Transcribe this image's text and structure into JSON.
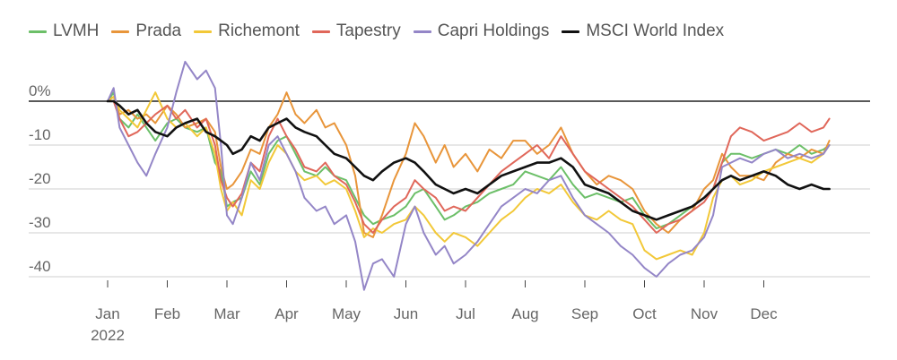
{
  "chart_data": {
    "type": "line",
    "title": "",
    "xlabel": "",
    "ylabel": "",
    "ylim": [
      -44,
      2
    ],
    "y_ticks": [
      0,
      -10,
      -20,
      -30,
      -40
    ],
    "y_tick_labels": [
      "0%",
      "-10",
      "-20",
      "-30",
      "-40"
    ],
    "x_ticks": [
      "Jan",
      "Feb",
      "Mar",
      "Apr",
      "May",
      "Jun",
      "Jul",
      "Aug",
      "Sep",
      "Oct",
      "Nov",
      "Dec"
    ],
    "x_tick_year": "2022",
    "x_tick_positions_month": [
      0,
      1,
      2,
      3,
      4,
      5,
      6,
      7,
      8,
      9,
      10,
      11
    ],
    "xlim_month": [
      0,
      12.2
    ],
    "legend_position": "top",
    "grid": "horizontal",
    "series": [
      {
        "name": "LVMH",
        "color": "#6cbf68",
        "x": [
          0,
          0.1,
          0.2,
          0.35,
          0.5,
          0.65,
          0.8,
          1.0,
          1.15,
          1.3,
          1.5,
          1.65,
          1.8,
          1.9,
          2.0,
          2.1,
          2.25,
          2.4,
          2.55,
          2.7,
          2.85,
          3.0,
          3.15,
          3.3,
          3.5,
          3.65,
          3.8,
          4.0,
          4.15,
          4.3,
          4.45,
          4.6,
          4.8,
          5.0,
          5.15,
          5.3,
          5.5,
          5.65,
          5.8,
          6.0,
          6.2,
          6.4,
          6.6,
          6.8,
          7.0,
          7.2,
          7.4,
          7.6,
          7.8,
          8.0,
          8.2,
          8.4,
          8.6,
          8.8,
          9.0,
          9.2,
          9.4,
          9.6,
          9.8,
          10.0,
          10.15,
          10.3,
          10.45,
          10.6,
          10.8,
          11.0,
          11.2,
          11.4,
          11.6,
          11.8,
          12.0,
          12.1
        ],
        "values": [
          0,
          2,
          -4,
          -6,
          -3,
          -6,
          -9,
          -5,
          -4,
          -6,
          -7,
          -6,
          -14,
          -16,
          -24,
          -23,
          -22,
          -16,
          -19,
          -12,
          -9,
          -8,
          -12,
          -16,
          -17,
          -15,
          -17,
          -18,
          -22,
          -26,
          -28,
          -27,
          -26,
          -24,
          -21,
          -20,
          -24,
          -27,
          -26,
          -24,
          -23,
          -21,
          -20,
          -19,
          -16,
          -17,
          -18,
          -15,
          -19,
          -22,
          -21,
          -22,
          -23,
          -22,
          -26,
          -29,
          -28,
          -26,
          -24,
          -22,
          -20,
          -14,
          -12,
          -12,
          -13,
          -12,
          -11,
          -12,
          -10,
          -12,
          -11,
          -10
        ]
      },
      {
        "name": "Prada",
        "color": "#e8953a",
        "x": [
          0,
          0.1,
          0.2,
          0.35,
          0.5,
          0.65,
          0.8,
          1.0,
          1.15,
          1.3,
          1.5,
          1.65,
          1.8,
          1.9,
          2.0,
          2.1,
          2.25,
          2.4,
          2.55,
          2.7,
          2.85,
          3.0,
          3.15,
          3.3,
          3.5,
          3.65,
          3.8,
          4.0,
          4.15,
          4.3,
          4.45,
          4.6,
          4.8,
          5.0,
          5.15,
          5.3,
          5.5,
          5.65,
          5.8,
          6.0,
          6.2,
          6.4,
          6.6,
          6.8,
          7.0,
          7.2,
          7.4,
          7.6,
          7.8,
          8.0,
          8.2,
          8.4,
          8.6,
          8.8,
          9.0,
          9.2,
          9.4,
          9.6,
          9.8,
          10.0,
          10.15,
          10.3,
          10.45,
          10.6,
          10.8,
          11.0,
          11.2,
          11.4,
          11.6,
          11.8,
          12.0,
          12.1
        ],
        "values": [
          0,
          1,
          -3,
          -2,
          -4,
          -3,
          -5,
          -1,
          -3,
          -6,
          -5,
          -4,
          -7,
          -15,
          -20,
          -19,
          -16,
          -11,
          -12,
          -6,
          -3,
          2,
          -3,
          -5,
          -2,
          -6,
          -5,
          -10,
          -17,
          -30,
          -31,
          -26,
          -18,
          -12,
          -5,
          -8,
          -14,
          -10,
          -15,
          -12,
          -16,
          -11,
          -13,
          -9,
          -9,
          -12,
          -10,
          -6,
          -12,
          -16,
          -19,
          -17,
          -18,
          -20,
          -25,
          -28,
          -30,
          -27,
          -25,
          -20,
          -18,
          -12,
          -15,
          -17,
          -17,
          -18,
          -14,
          -12,
          -13,
          -11,
          -12,
          -9
        ]
      },
      {
        "name": "Richemont",
        "color": "#f2c838",
        "x": [
          0,
          0.1,
          0.2,
          0.35,
          0.5,
          0.65,
          0.8,
          1.0,
          1.15,
          1.3,
          1.5,
          1.65,
          1.8,
          1.9,
          2.0,
          2.1,
          2.25,
          2.4,
          2.55,
          2.7,
          2.85,
          3.0,
          3.15,
          3.3,
          3.5,
          3.65,
          3.8,
          4.0,
          4.15,
          4.3,
          4.45,
          4.6,
          4.8,
          5.0,
          5.15,
          5.3,
          5.5,
          5.65,
          5.8,
          6.0,
          6.2,
          6.4,
          6.6,
          6.8,
          7.0,
          7.2,
          7.4,
          7.6,
          7.8,
          8.0,
          8.2,
          8.4,
          8.6,
          8.8,
          9.0,
          9.2,
          9.4,
          9.6,
          9.8,
          10.0,
          10.15,
          10.3,
          10.45,
          10.6,
          10.8,
          11.0,
          11.2,
          11.4,
          11.6,
          11.8,
          12.0,
          12.1
        ],
        "values": [
          0,
          1,
          -2,
          -4,
          -6,
          -2,
          2,
          -4,
          -6,
          -5,
          -8,
          -6,
          -12,
          -20,
          -25,
          -23,
          -26,
          -18,
          -20,
          -14,
          -10,
          -12,
          -16,
          -18,
          -17,
          -19,
          -18,
          -20,
          -25,
          -31,
          -29,
          -30,
          -28,
          -27,
          -24,
          -26,
          -30,
          -32,
          -30,
          -31,
          -33,
          -30,
          -27,
          -25,
          -22,
          -20,
          -21,
          -19,
          -23,
          -26,
          -27,
          -25,
          -27,
          -28,
          -34,
          -36,
          -35,
          -34,
          -35,
          -30,
          -22,
          -18,
          -17,
          -19,
          -18,
          -16,
          -15,
          -14,
          -13,
          -14,
          -12,
          -10
        ]
      },
      {
        "name": "Tapestry",
        "color": "#e0675a",
        "x": [
          0,
          0.1,
          0.2,
          0.35,
          0.5,
          0.65,
          0.8,
          1.0,
          1.15,
          1.3,
          1.5,
          1.65,
          1.8,
          1.9,
          2.0,
          2.1,
          2.25,
          2.4,
          2.55,
          2.7,
          2.85,
          3.0,
          3.15,
          3.3,
          3.5,
          3.65,
          3.8,
          4.0,
          4.15,
          4.3,
          4.45,
          4.6,
          4.8,
          5.0,
          5.15,
          5.3,
          5.5,
          5.65,
          5.8,
          6.0,
          6.2,
          6.4,
          6.6,
          6.8,
          7.0,
          7.2,
          7.4,
          7.6,
          7.8,
          8.0,
          8.2,
          8.4,
          8.6,
          8.8,
          9.0,
          9.2,
          9.4,
          9.6,
          9.8,
          10.0,
          10.15,
          10.3,
          10.45,
          10.6,
          10.8,
          11.0,
          11.2,
          11.4,
          11.6,
          11.8,
          12.0,
          12.1
        ],
        "values": [
          0,
          0,
          -4,
          -8,
          -7,
          -5,
          -3,
          -1,
          -4,
          -2,
          -6,
          -4,
          -10,
          -18,
          -22,
          -24,
          -21,
          -14,
          -16,
          -8,
          -4,
          -8,
          -11,
          -15,
          -16,
          -14,
          -17,
          -19,
          -23,
          -28,
          -30,
          -27,
          -24,
          -22,
          -18,
          -20,
          -22,
          -25,
          -24,
          -25,
          -22,
          -19,
          -16,
          -14,
          -12,
          -10,
          -13,
          -8,
          -12,
          -16,
          -18,
          -20,
          -22,
          -24,
          -27,
          -30,
          -28,
          -27,
          -25,
          -23,
          -20,
          -14,
          -8,
          -6,
          -7,
          -9,
          -8,
          -7,
          -5,
          -7,
          -6,
          -4
        ]
      },
      {
        "name": "Capri Holdings",
        "color": "#9486c7",
        "x": [
          0,
          0.1,
          0.2,
          0.35,
          0.5,
          0.65,
          0.8,
          1.0,
          1.15,
          1.3,
          1.5,
          1.65,
          1.8,
          1.9,
          2.0,
          2.1,
          2.25,
          2.4,
          2.55,
          2.7,
          2.85,
          3.0,
          3.15,
          3.3,
          3.5,
          3.65,
          3.8,
          4.0,
          4.15,
          4.3,
          4.45,
          4.6,
          4.8,
          5.0,
          5.15,
          5.3,
          5.5,
          5.65,
          5.8,
          6.0,
          6.2,
          6.4,
          6.6,
          6.8,
          7.0,
          7.2,
          7.4,
          7.6,
          7.8,
          8.0,
          8.2,
          8.4,
          8.6,
          8.8,
          9.0,
          9.2,
          9.4,
          9.6,
          9.8,
          10.0,
          10.15,
          10.3,
          10.45,
          10.6,
          10.8,
          11.0,
          11.2,
          11.4,
          11.6,
          11.8,
          12.0,
          12.1
        ],
        "values": [
          0,
          3,
          -6,
          -10,
          -14,
          -17,
          -12,
          -6,
          2,
          9,
          5,
          7,
          3,
          -10,
          -26,
          -28,
          -22,
          -14,
          -18,
          -10,
          -8,
          -12,
          -16,
          -22,
          -25,
          -24,
          -28,
          -26,
          -32,
          -43,
          -37,
          -36,
          -40,
          -28,
          -24,
          -30,
          -35,
          -33,
          -37,
          -35,
          -32,
          -28,
          -24,
          -22,
          -20,
          -21,
          -18,
          -17,
          -22,
          -26,
          -28,
          -30,
          -33,
          -35,
          -38,
          -40,
          -37,
          -35,
          -34,
          -31,
          -26,
          -15,
          -14,
          -13,
          -14,
          -12,
          -11,
          -13,
          -12,
          -13,
          -12,
          -10
        ]
      },
      {
        "name": "MSCI World Index",
        "color": "#111111",
        "x": [
          0,
          0.1,
          0.2,
          0.35,
          0.5,
          0.65,
          0.8,
          1.0,
          1.15,
          1.3,
          1.5,
          1.65,
          1.8,
          1.9,
          2.0,
          2.1,
          2.25,
          2.4,
          2.55,
          2.7,
          2.85,
          3.0,
          3.15,
          3.3,
          3.5,
          3.65,
          3.8,
          4.0,
          4.15,
          4.3,
          4.45,
          4.6,
          4.8,
          5.0,
          5.15,
          5.3,
          5.5,
          5.65,
          5.8,
          6.0,
          6.2,
          6.4,
          6.6,
          6.8,
          7.0,
          7.2,
          7.4,
          7.6,
          7.8,
          8.0,
          8.2,
          8.4,
          8.6,
          8.8,
          9.0,
          9.2,
          9.4,
          9.6,
          9.8,
          10.0,
          10.15,
          10.3,
          10.45,
          10.6,
          10.8,
          11.0,
          11.2,
          11.4,
          11.6,
          11.8,
          12.0,
          12.1
        ],
        "values": [
          0,
          0,
          -1,
          -3,
          -2,
          -5,
          -7,
          -8,
          -6,
          -5,
          -4,
          -7,
          -8,
          -9,
          -10,
          -12,
          -11,
          -8,
          -9,
          -6,
          -5,
          -4,
          -6,
          -7,
          -8,
          -10,
          -12,
          -13,
          -15,
          -17,
          -18,
          -16,
          -14,
          -13,
          -14,
          -16,
          -19,
          -20,
          -21,
          -20,
          -21,
          -19,
          -17,
          -16,
          -15,
          -14,
          -14,
          -13,
          -15,
          -19,
          -20,
          -21,
          -23,
          -25,
          -26,
          -27,
          -26,
          -25,
          -24,
          -22,
          -20,
          -18,
          -17,
          -18,
          -17,
          -16,
          -17,
          -19,
          -20,
          -19,
          -20,
          -20
        ]
      }
    ]
  }
}
